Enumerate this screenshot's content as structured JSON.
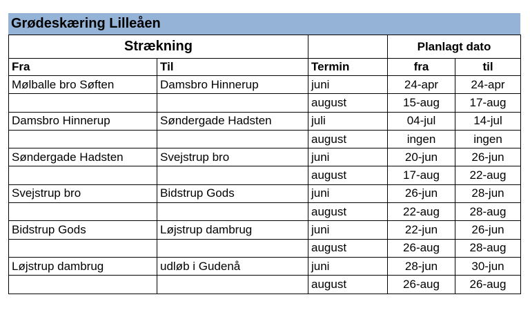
{
  "title": "Grødeskæring Lilleåen",
  "headers": {
    "group": "Strækning",
    "planned": "Planlagt dato",
    "fra": "Fra",
    "til": "Til",
    "termin": "Termin",
    "date_fra": "fra",
    "date_til": "til"
  },
  "rows": [
    {
      "fra": "Mølballe bro Søften",
      "til": "Damsbro Hinnerup",
      "termin": "juni",
      "date_fra": "24-apr",
      "date_til": "24-apr"
    },
    {
      "fra": "",
      "til": "",
      "termin": "august",
      "date_fra": "15-aug",
      "date_til": "17-aug"
    },
    {
      "fra": "Damsbro Hinnerup",
      "til": "Søndergade Hadsten",
      "termin": "juli",
      "date_fra": "04-jul",
      "date_til": "14-jul"
    },
    {
      "fra": "",
      "til": "",
      "termin": "august",
      "date_fra": "ingen",
      "date_til": "ingen"
    },
    {
      "fra": "Søndergade Hadsten",
      "til": "Svejstrup bro",
      "termin": "juni",
      "date_fra": "20-jun",
      "date_til": "26-jun"
    },
    {
      "fra": "",
      "til": "",
      "termin": "august",
      "date_fra": "17-aug",
      "date_til": "22-aug"
    },
    {
      "fra": "Svejstrup bro",
      "til": "Bidstrup Gods",
      "termin": "juni",
      "date_fra": "26-jun",
      "date_til": "28-jun"
    },
    {
      "fra": "",
      "til": "",
      "termin": "august",
      "date_fra": "22-aug",
      "date_til": "28-aug"
    },
    {
      "fra": "Bidstrup Gods",
      "til": "Løjstrup dambrug",
      "termin": "juni",
      "date_fra": "22-jun",
      "date_til": "26-jun"
    },
    {
      "fra": "",
      "til": "",
      "termin": "august",
      "date_fra": "26-aug",
      "date_til": "28-aug"
    },
    {
      "fra": "Løjstrup dambrug",
      "til": "udløb i Gudenå",
      "termin": "juni",
      "date_fra": "28-jun",
      "date_til": "30-jun"
    },
    {
      "fra": "",
      "til": "",
      "termin": "august",
      "date_fra": "26-aug",
      "date_til": "26-aug"
    }
  ]
}
